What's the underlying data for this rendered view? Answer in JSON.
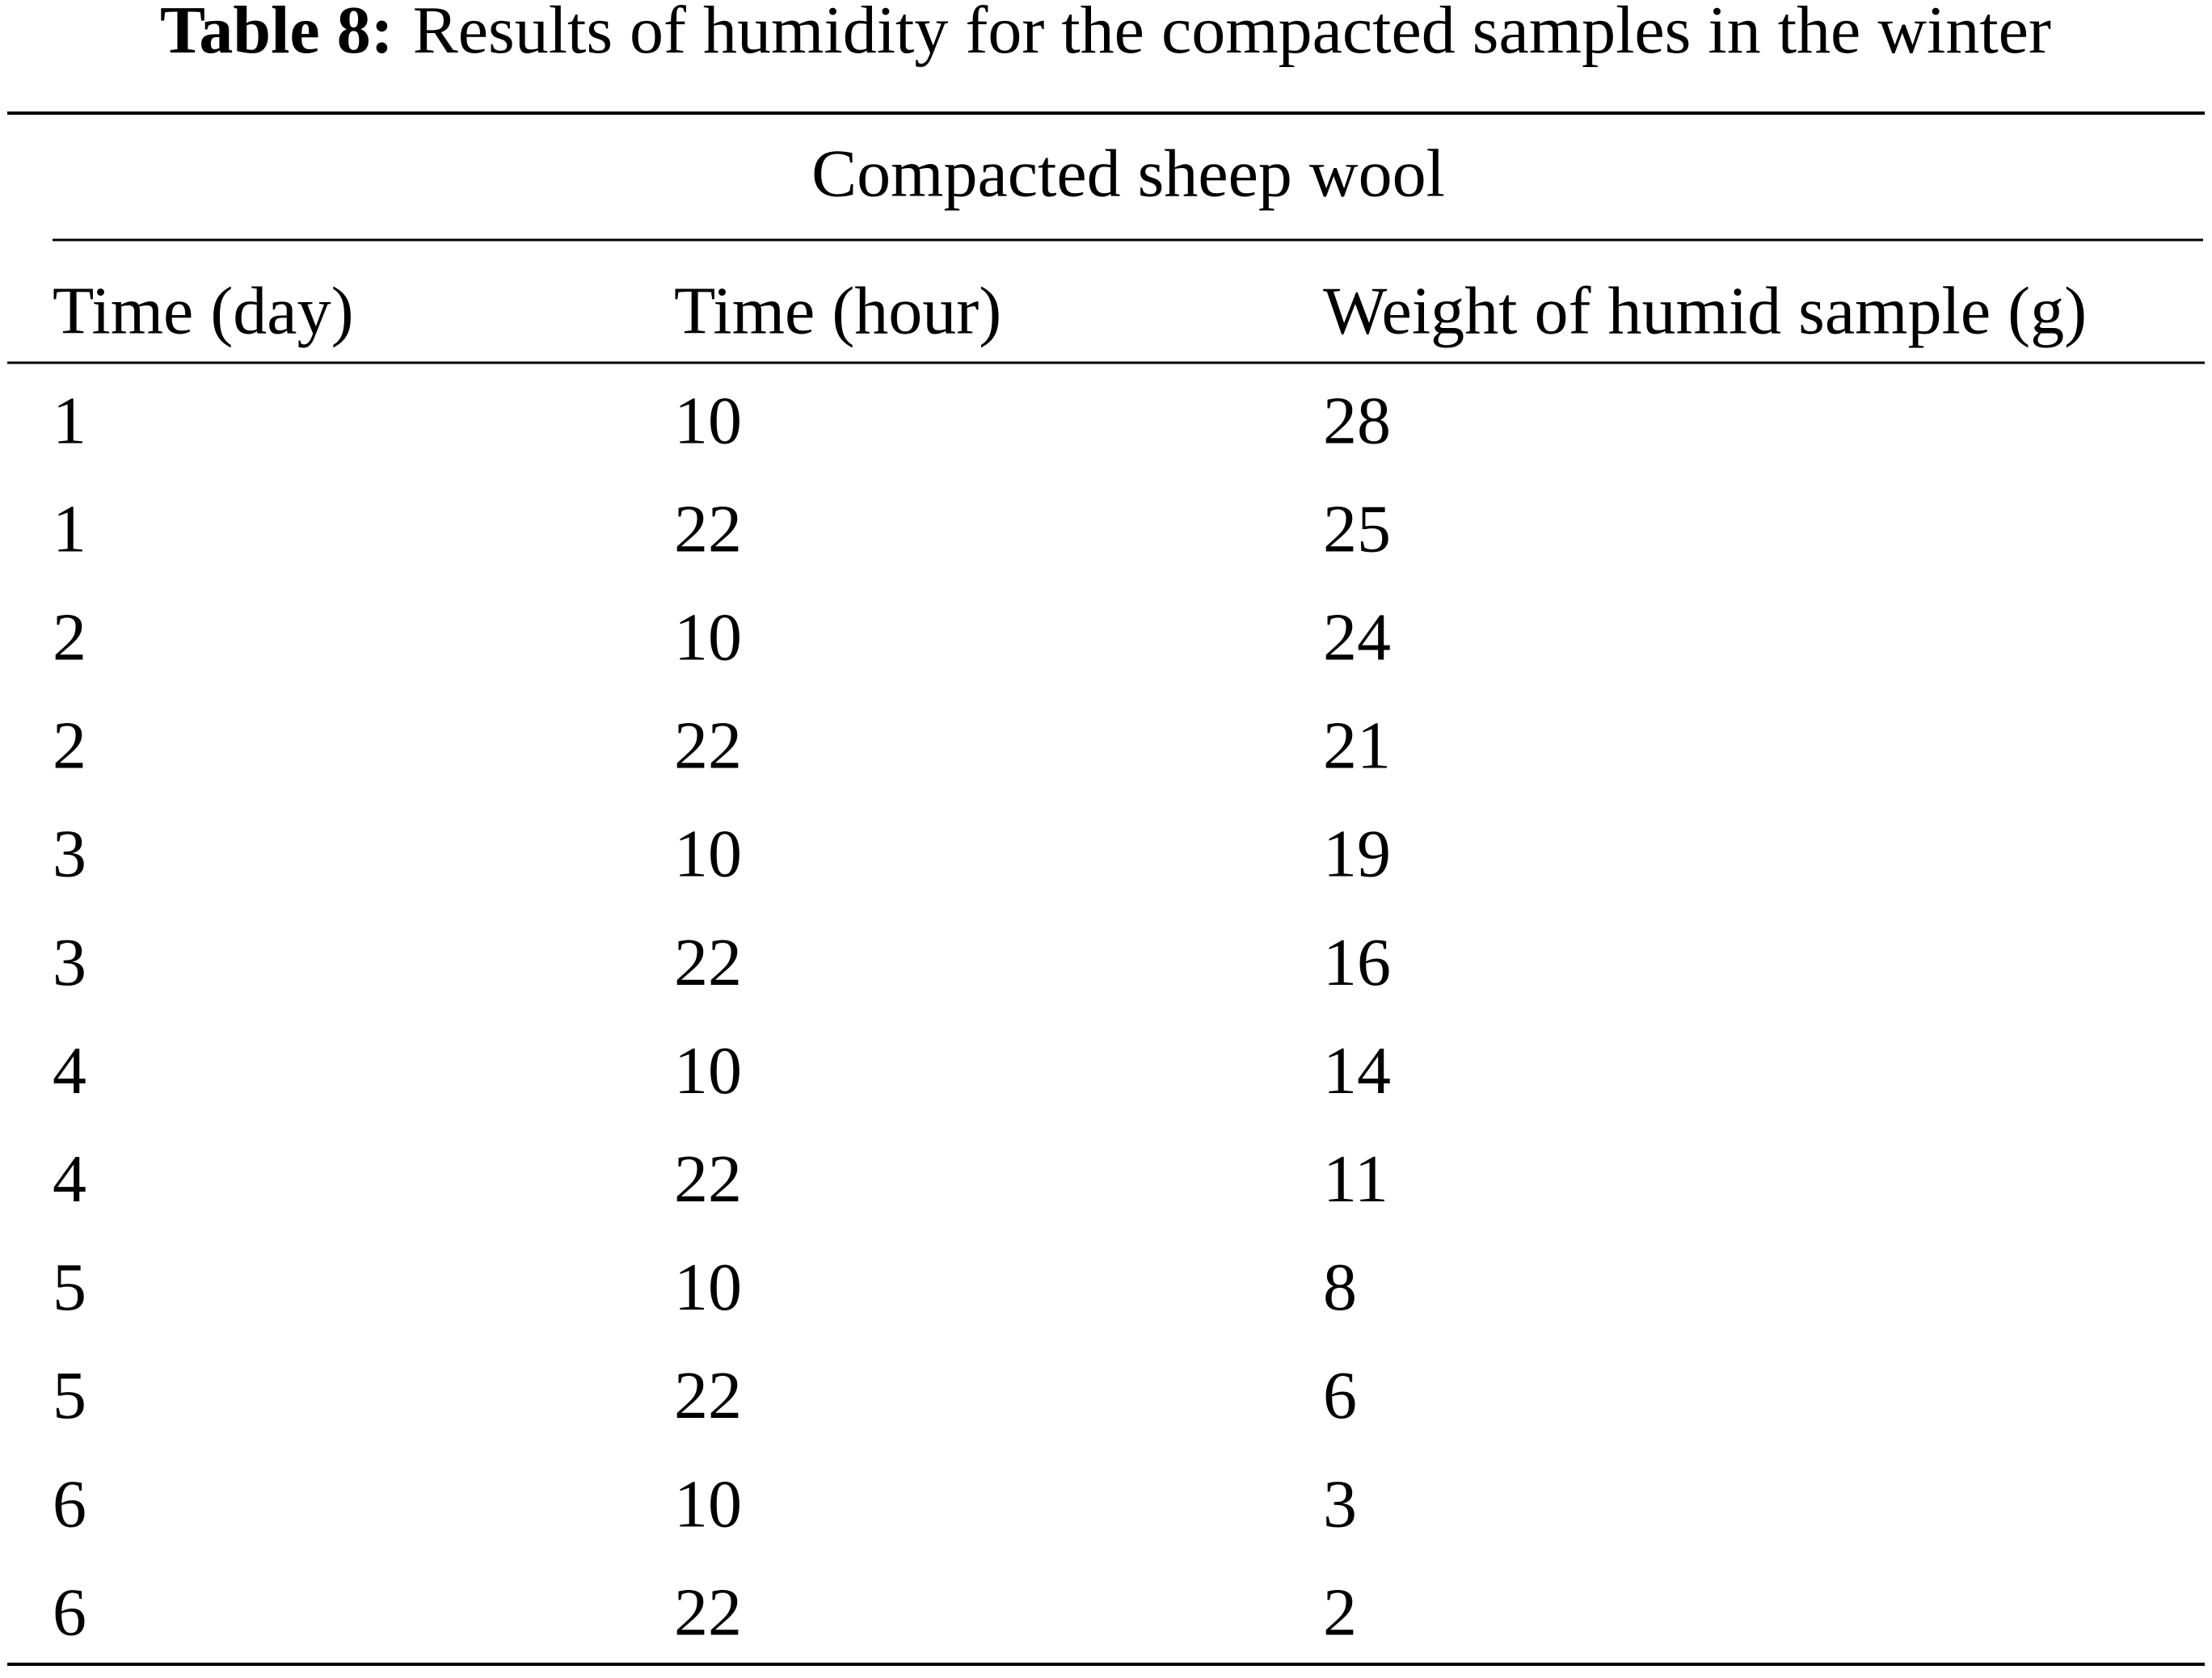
{
  "caption": {
    "label": "Table 8:",
    "text": "Results of humidity for the compacted samples in the winter"
  },
  "table": {
    "group_header": "Compacted sheep wool",
    "columns": [
      "Time (day)",
      "Time (hour)",
      "Weight of humid sample (g)"
    ],
    "rows": [
      [
        1,
        10,
        28
      ],
      [
        1,
        22,
        25
      ],
      [
        2,
        10,
        24
      ],
      [
        2,
        22,
        21
      ],
      [
        3,
        10,
        19
      ],
      [
        3,
        22,
        16
      ],
      [
        4,
        10,
        14
      ],
      [
        4,
        22,
        11
      ],
      [
        5,
        10,
        8
      ],
      [
        5,
        22,
        6
      ],
      [
        6,
        10,
        3
      ],
      [
        6,
        22,
        2
      ]
    ]
  }
}
